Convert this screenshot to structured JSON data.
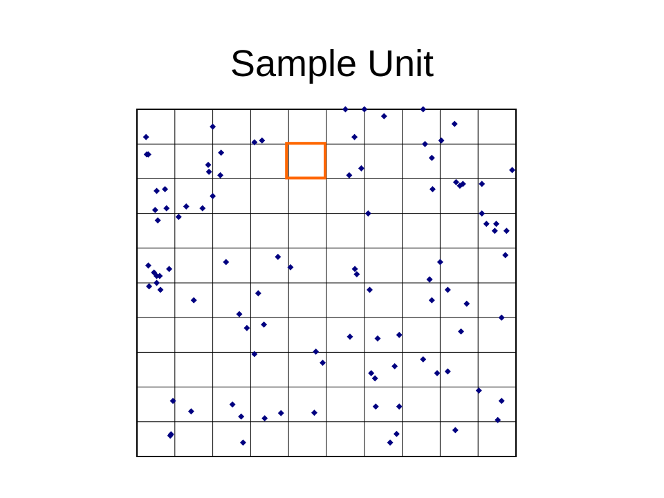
{
  "slide": {
    "title": "Sample Unit"
  },
  "colors": {
    "background": "#ffffff",
    "grid_line": "#000000",
    "point": "#000080",
    "sample_unit_highlight": "#ff6600"
  },
  "grid": {
    "columns": 10,
    "rows": 10
  },
  "sample_unit": {
    "column": 4,
    "row": 1
  },
  "points": [
    [
      0.24,
      0.8
    ],
    [
      0.3,
      1.3
    ],
    [
      0.52,
      2.35
    ],
    [
      0.78,
      2.85
    ],
    [
      1.1,
      3.1
    ],
    [
      1.3,
      2.8
    ],
    [
      1.73,
      2.85
    ],
    [
      1.9,
      1.8
    ],
    [
      2.0,
      0.5
    ],
    [
      2.0,
      2.5
    ],
    [
      2.22,
      1.25
    ],
    [
      2.2,
      1.9
    ],
    [
      1.88,
      1.6
    ],
    [
      0.55,
      3.2
    ],
    [
      0.74,
      2.3
    ],
    [
      0.48,
      2.9
    ],
    [
      0.45,
      4.7
    ],
    [
      0.52,
      5.0
    ],
    [
      0.3,
      4.5
    ],
    [
      0.32,
      5.1
    ],
    [
      1.5,
      5.5
    ],
    [
      2.35,
      4.4
    ],
    [
      2.7,
      5.9
    ],
    [
      0.6,
      4.8
    ],
    [
      1.43,
      8.7
    ],
    [
      0.95,
      8.4
    ],
    [
      0.88,
      9.4
    ],
    [
      0.9,
      9.36
    ],
    [
      2.52,
      8.5
    ],
    [
      3.37,
      8.9
    ],
    [
      3.3,
      0.9
    ],
    [
      3.1,
      0.95
    ],
    [
      4.05,
      4.55
    ],
    [
      3.72,
      4.25
    ],
    [
      2.9,
      6.3
    ],
    [
      3.2,
      5.3
    ],
    [
      3.1,
      7.05
    ],
    [
      3.35,
      6.2
    ],
    [
      2.75,
      8.85
    ],
    [
      2.8,
      9.6
    ],
    [
      3.8,
      8.75
    ],
    [
      4.68,
      8.74
    ],
    [
      4.72,
      6.98
    ],
    [
      4.9,
      7.3
    ],
    [
      5.5,
      0.0
    ],
    [
      5.74,
      0.8
    ],
    [
      5.6,
      1.9
    ],
    [
      5.75,
      4.6
    ],
    [
      5.8,
      4.75
    ],
    [
      6.0,
      0.0
    ],
    [
      5.92,
      1.7
    ],
    [
      6.18,
      7.6
    ],
    [
      6.14,
      5.2
    ],
    [
      6.1,
      3.0
    ],
    [
      5.62,
      6.55
    ],
    [
      6.35,
      6.6
    ],
    [
      6.28,
      7.75
    ],
    [
      6.3,
      8.56
    ],
    [
      6.8,
      7.4
    ],
    [
      6.92,
      8.56
    ],
    [
      6.85,
      9.35
    ],
    [
      6.68,
      9.6
    ],
    [
      6.92,
      6.5
    ],
    [
      6.52,
      0.2
    ],
    [
      7.6,
      1.0
    ],
    [
      8.03,
      0.9
    ],
    [
      7.78,
      1.4
    ],
    [
      7.55,
      0.0
    ],
    [
      7.8,
      2.3
    ],
    [
      8.42,
      2.1
    ],
    [
      8.6,
      2.15
    ],
    [
      8.0,
      4.4
    ],
    [
      7.72,
      4.9
    ],
    [
      8.2,
      5.2
    ],
    [
      7.78,
      5.5
    ],
    [
      7.72,
      4.9
    ],
    [
      8.7,
      5.6
    ],
    [
      8.55,
      6.4
    ],
    [
      8.4,
      9.24
    ],
    [
      7.55,
      7.2
    ],
    [
      7.92,
      7.6
    ],
    [
      8.2,
      7.55
    ],
    [
      9.1,
      3.0
    ],
    [
      9.22,
      3.3
    ],
    [
      9.44,
      3.5
    ],
    [
      9.75,
      3.5
    ],
    [
      9.72,
      4.2
    ],
    [
      9.9,
      1.75
    ],
    [
      9.62,
      6.0
    ],
    [
      9.48,
      3.3
    ],
    [
      9.62,
      8.4
    ],
    [
      9.52,
      8.95
    ],
    [
      9.02,
      8.1
    ],
    [
      8.38,
      0.42
    ],
    [
      8.52,
      2.2
    ],
    [
      0.26,
      1.3
    ],
    [
      0.85,
      4.6
    ],
    [
      0.62,
      5.2
    ],
    [
      0.52,
      4.8
    ],
    [
      9.1,
      2.15
    ]
  ]
}
